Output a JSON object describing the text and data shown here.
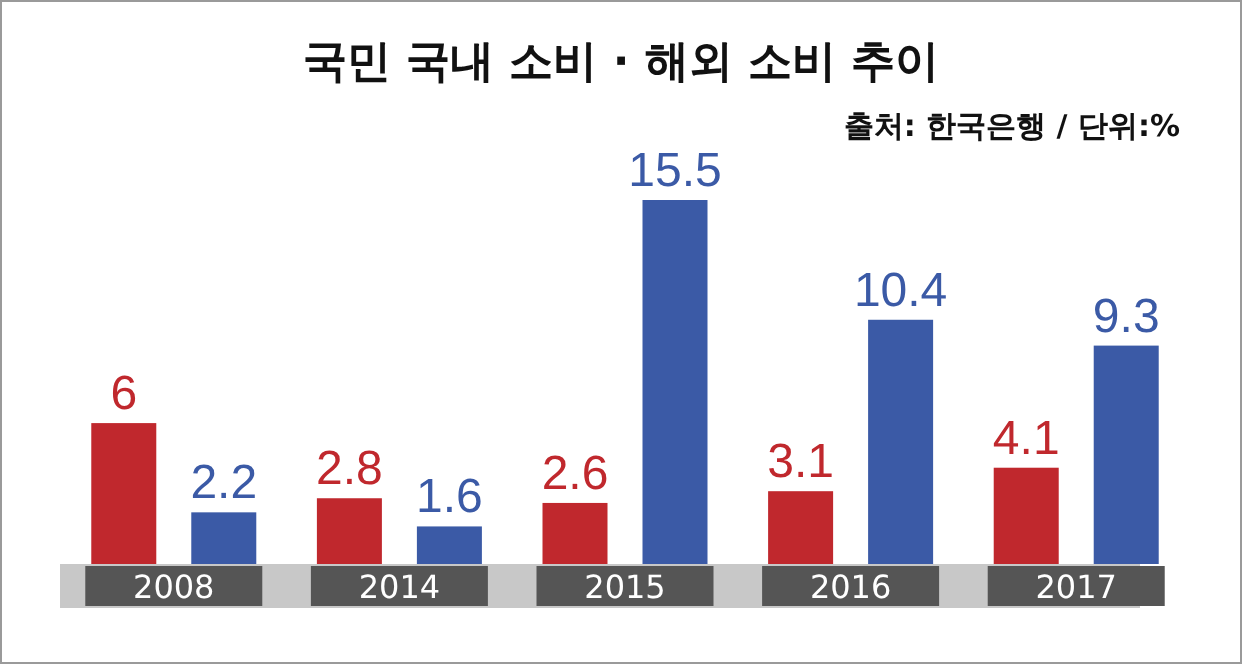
{
  "chart_data": {
    "type": "bar",
    "title": "국민 국내 소비 · 해외 소비 추이",
    "subtitle": "출처: 한국은행 / 단위:%",
    "categories": [
      "2008",
      "2014",
      "2015",
      "2016",
      "2017"
    ],
    "series": [
      {
        "color": "#c0282d",
        "values": [
          6,
          2.8,
          2.6,
          3.1,
          4.1
        ]
      },
      {
        "color": "#3b5aa6",
        "values": [
          2.2,
          1.6,
          15.5,
          10.4,
          9.3
        ]
      }
    ],
    "data_labels": true
  }
}
